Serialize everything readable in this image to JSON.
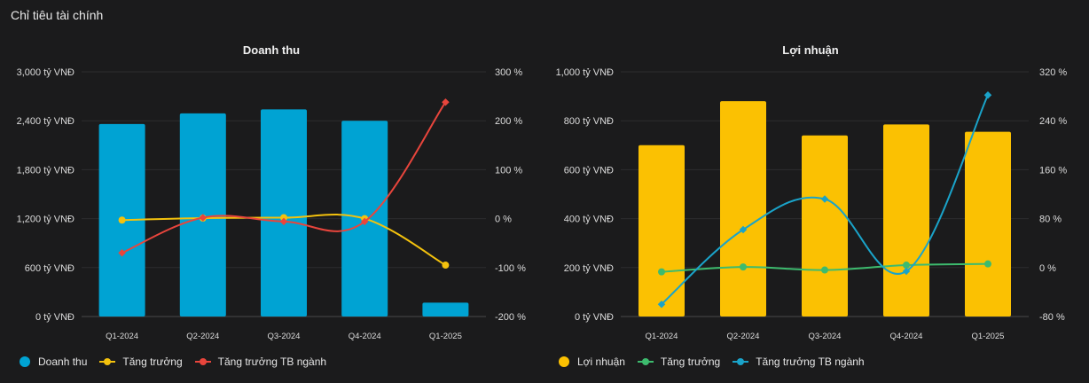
{
  "page_title": "Chỉ tiêu tài chính",
  "chart_data": [
    {
      "type": "bar",
      "title": "Doanh thu",
      "categories": [
        "Q1-2024",
        "Q2-2024",
        "Q3-2024",
        "Q4-2024",
        "Q1-2025"
      ],
      "y_left": {
        "ticks": [
          "3,000 tỷ VNĐ",
          "2,400 tỷ VNĐ",
          "1,800 tỷ VNĐ",
          "1,200 tỷ VNĐ",
          "600 tỷ VNĐ",
          "0 tỷ VNĐ"
        ],
        "range": [
          0,
          3000
        ]
      },
      "y_right": {
        "ticks": [
          "300 %",
          "200 %",
          "100 %",
          "0 %",
          "-100 %",
          "-200 %"
        ],
        "range": [
          -200,
          300
        ]
      },
      "series": [
        {
          "name": "Doanh thu",
          "kind": "bar",
          "axis": "left",
          "color": "#00a3d3",
          "values": [
            2360,
            2490,
            2540,
            2400,
            170
          ]
        },
        {
          "name": "Tăng trưởng",
          "kind": "line",
          "axis": "right",
          "color": "#f4c20d",
          "values": [
            -3,
            1,
            2,
            0,
            -95
          ]
        },
        {
          "name": "Tăng trưởng TB ngành",
          "kind": "line",
          "axis": "right",
          "color": "#e8453c",
          "values": [
            -70,
            2,
            -6,
            -6,
            238
          ]
        }
      ],
      "grid": true,
      "legend_position": "bottom-left"
    },
    {
      "type": "bar",
      "title": "Lợi nhuận",
      "categories": [
        "Q1-2024",
        "Q2-2024",
        "Q3-2024",
        "Q4-2024",
        "Q1-2025"
      ],
      "y_left": {
        "ticks": [
          "1,000 tỷ VNĐ",
          "800 tỷ VNĐ",
          "600 tỷ VNĐ",
          "400 tỷ VNĐ",
          "200 tỷ VNĐ",
          "0 tỷ VNĐ"
        ],
        "range": [
          0,
          1000
        ]
      },
      "y_right": {
        "ticks": [
          "320 %",
          "240 %",
          "160 %",
          "80 %",
          "0 %",
          "-80 %"
        ],
        "range": [
          -80,
          320
        ]
      },
      "series": [
        {
          "name": "Lợi nhuận",
          "kind": "bar",
          "axis": "left",
          "color": "#fbc102",
          "values": [
            700,
            880,
            740,
            785,
            755
          ]
        },
        {
          "name": "Tăng trưởng",
          "kind": "line",
          "axis": "right",
          "color": "#3dbb6e",
          "values": [
            -7,
            1,
            -4,
            4,
            6
          ]
        },
        {
          "name": "Tăng trưởng TB ngành",
          "kind": "line",
          "axis": "right",
          "color": "#1aa3c9",
          "values": [
            -60,
            62,
            112,
            -6,
            282
          ]
        }
      ],
      "grid": true,
      "legend_position": "bottom-left"
    }
  ]
}
